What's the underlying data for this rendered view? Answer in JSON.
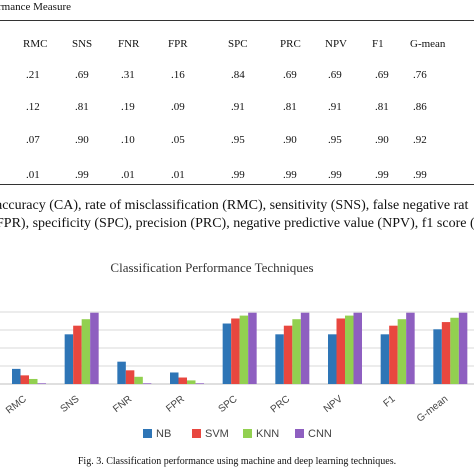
{
  "table": {
    "header_fragment": "rmance Measure",
    "columns": [
      "RMC",
      "SNS",
      "FNR",
      "FPR",
      "SPC",
      "PRC",
      "NPV",
      "F1",
      "G-mean"
    ],
    "rows": [
      [
        ".21",
        ".69",
        ".31",
        ".16",
        ".84",
        ".69",
        ".69",
        ".69",
        ".76"
      ],
      [
        ".12",
        ".81",
        ".19",
        ".09",
        ".91",
        ".81",
        ".91",
        ".81",
        ".86"
      ],
      [
        ".07",
        ".90",
        ".10",
        ".05",
        ".95",
        ".90",
        ".95",
        ".90",
        ".92"
      ],
      [
        ".01",
        ".99",
        ".01",
        ".01",
        ".99",
        ".99",
        ".99",
        ".99",
        ".99"
      ]
    ]
  },
  "caption": {
    "line1": "accuracy (CA), rate of misclassification (RMC), sensitivity (SNS), false negative rat",
    "line2": "FPR), specificity (SPC), precision (PRC), negative predictive value (NPV), f1 score (F1"
  },
  "figure_caption": "Fig. 3.    Classification performance using machine and deep learning techniques.",
  "chart_data": {
    "type": "bar",
    "title": "Classification Performance Techniques",
    "categories": [
      "RMC",
      "SNS",
      "FNR",
      "FPR",
      "SPC",
      "PRC",
      "NPV",
      "F1",
      "G-mean"
    ],
    "series": [
      {
        "name": "NB",
        "color": "#2e75b6",
        "values": [
          0.21,
          0.69,
          0.31,
          0.16,
          0.84,
          0.69,
          0.69,
          0.69,
          0.76
        ]
      },
      {
        "name": "SVM",
        "color": "#e8473f",
        "values": [
          0.12,
          0.81,
          0.19,
          0.09,
          0.91,
          0.81,
          0.91,
          0.81,
          0.86
        ]
      },
      {
        "name": "KNN",
        "color": "#92d050",
        "values": [
          0.07,
          0.9,
          0.1,
          0.05,
          0.95,
          0.9,
          0.95,
          0.9,
          0.92
        ]
      },
      {
        "name": "CNN",
        "color": "#8e5fc0",
        "values": [
          0.01,
          0.99,
          0.01,
          0.01,
          0.99,
          0.99,
          0.99,
          0.99,
          0.99
        ]
      }
    ],
    "ylim": [
      0,
      1
    ],
    "grid": true,
    "legend": "bottom"
  }
}
